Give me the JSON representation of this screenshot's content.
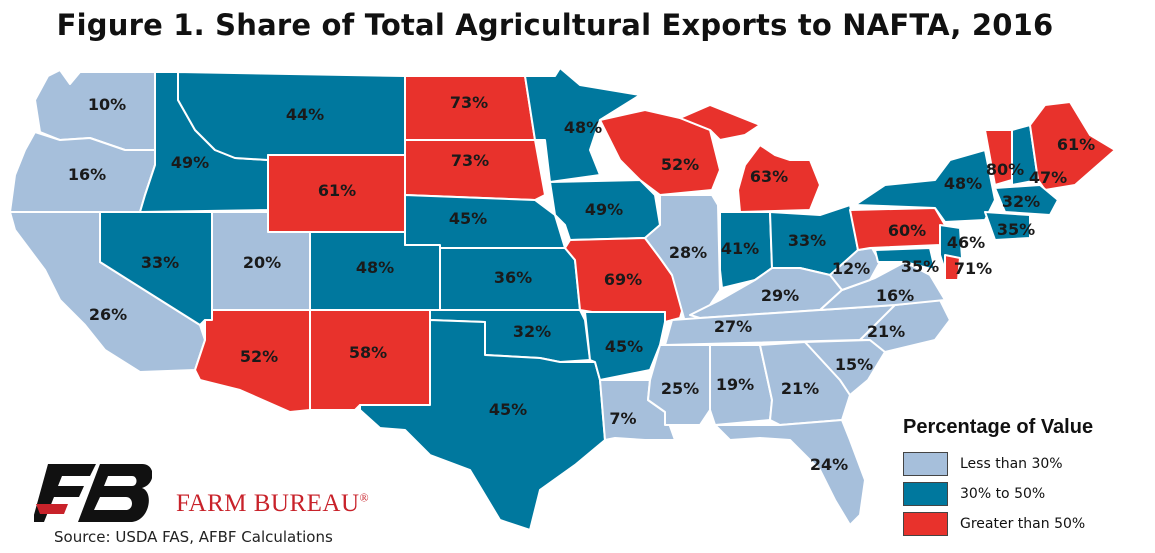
{
  "title": "Figure 1. Share of Total Agricultural Exports to NAFTA, 2016",
  "legend": {
    "title": "Percentage of Value",
    "items": [
      {
        "key": "low",
        "label": "Less than 30%",
        "color": "#a6bfdb"
      },
      {
        "key": "mid",
        "label": "30% to 50%",
        "color": "#00789e"
      },
      {
        "key": "high",
        "label": "Greater than 50%",
        "color": "#e8322c"
      }
    ]
  },
  "brand": {
    "name": "FARM BUREAU",
    "logo_text": "FB"
  },
  "source": "Source: USDA FAS, AFBF Calculations",
  "states": [
    {
      "id": "WA",
      "value": "10%",
      "category": "low"
    },
    {
      "id": "OR",
      "value": "16%",
      "category": "low"
    },
    {
      "id": "CA",
      "value": "26%",
      "category": "low"
    },
    {
      "id": "ID",
      "value": "49%",
      "category": "mid"
    },
    {
      "id": "NV",
      "value": "33%",
      "category": "mid"
    },
    {
      "id": "MT",
      "value": "44%",
      "category": "mid"
    },
    {
      "id": "WY",
      "value": "61%",
      "category": "high"
    },
    {
      "id": "UT",
      "value": "20%",
      "category": "low"
    },
    {
      "id": "AZ",
      "value": "52%",
      "category": "high"
    },
    {
      "id": "CO",
      "value": "48%",
      "category": "mid"
    },
    {
      "id": "NM",
      "value": "58%",
      "category": "high"
    },
    {
      "id": "ND",
      "value": "73%",
      "category": "high"
    },
    {
      "id": "SD",
      "value": "73%",
      "category": "high"
    },
    {
      "id": "NE",
      "value": "45%",
      "category": "mid"
    },
    {
      "id": "KS",
      "value": "36%",
      "category": "mid"
    },
    {
      "id": "OK",
      "value": "32%",
      "category": "mid"
    },
    {
      "id": "TX",
      "value": "45%",
      "category": "mid"
    },
    {
      "id": "MN",
      "value": "48%",
      "category": "mid"
    },
    {
      "id": "IA",
      "value": "49%",
      "category": "mid"
    },
    {
      "id": "MO",
      "value": "69%",
      "category": "high"
    },
    {
      "id": "AR",
      "value": "45%",
      "category": "mid"
    },
    {
      "id": "LA",
      "value": "7%",
      "category": "low"
    },
    {
      "id": "WI",
      "value": "52%",
      "category": "high"
    },
    {
      "id": "IL",
      "value": "28%",
      "category": "low"
    },
    {
      "id": "MI",
      "value": "63%",
      "category": "high"
    },
    {
      "id": "IN",
      "value": "41%",
      "category": "mid"
    },
    {
      "id": "OH",
      "value": "33%",
      "category": "mid"
    },
    {
      "id": "KY",
      "value": "29%",
      "category": "low"
    },
    {
      "id": "TN",
      "value": "27%",
      "category": "low"
    },
    {
      "id": "MS",
      "value": "25%",
      "category": "low"
    },
    {
      "id": "AL",
      "value": "19%",
      "category": "low"
    },
    {
      "id": "GA",
      "value": "21%",
      "category": "low"
    },
    {
      "id": "FL",
      "value": "24%",
      "category": "low"
    },
    {
      "id": "SC",
      "value": "15%",
      "category": "low"
    },
    {
      "id": "NC",
      "value": "21%",
      "category": "low"
    },
    {
      "id": "VA",
      "value": "16%",
      "category": "low"
    },
    {
      "id": "WV",
      "value": "12%",
      "category": "low"
    },
    {
      "id": "PA",
      "value": "60%",
      "category": "high"
    },
    {
      "id": "NY",
      "value": "48%",
      "category": "mid"
    },
    {
      "id": "VT",
      "value": "80%",
      "category": "high"
    },
    {
      "id": "NH",
      "value": "47%",
      "category": "mid"
    },
    {
      "id": "ME",
      "value": "61%",
      "category": "high"
    },
    {
      "id": "MA",
      "value": "32%",
      "category": "mid"
    },
    {
      "id": "CT",
      "value": "35%",
      "category": "mid"
    },
    {
      "id": "NJ",
      "value": "46%",
      "category": "mid"
    },
    {
      "id": "MD",
      "value": "35%",
      "category": "mid"
    },
    {
      "id": "DE",
      "value": "71%",
      "category": "high"
    }
  ]
}
